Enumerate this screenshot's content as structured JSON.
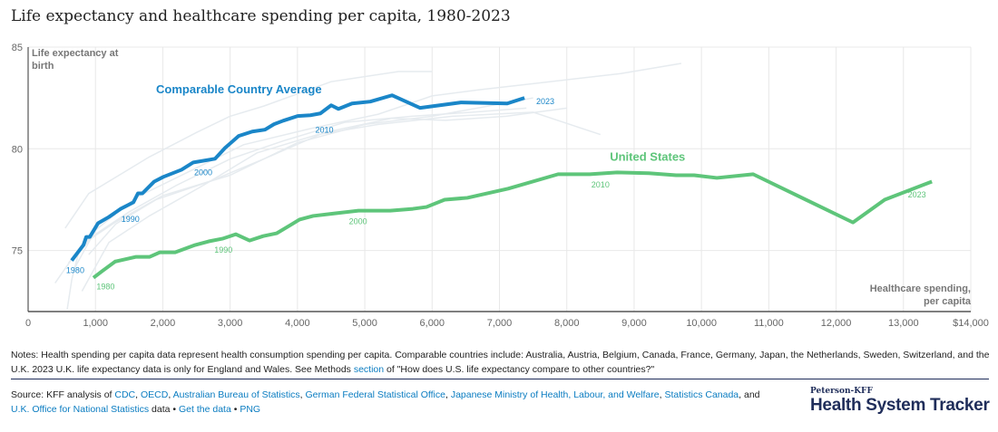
{
  "title": "Life expectancy and healthcare spending per capita, 1980-2023",
  "chart_data": {
    "type": "line",
    "title": "Life expectancy and healthcare spending per capita, 1980-2023",
    "xlabel": "Healthcare spending, per capita",
    "ylabel": "Life expectancy at birth",
    "xlabel_lines": [
      "Healthcare spending,",
      "per capita"
    ],
    "ylabel_lines": [
      "Life expectancy at",
      "birth"
    ],
    "xlim": [
      0,
      14000
    ],
    "ylim": [
      72,
      85
    ],
    "x_ticks": [
      0,
      1000,
      2000,
      3000,
      4000,
      5000,
      6000,
      7000,
      8000,
      9000,
      10000,
      11000,
      12000,
      13000,
      14000
    ],
    "x_tick_labels": [
      "0",
      "1,000",
      "2,000",
      "3,000",
      "4,000",
      "5,000",
      "6,000",
      "7,000",
      "8,000",
      "9,000",
      "10,000",
      "11,000",
      "12,000",
      "13,000",
      "$14,000"
    ],
    "y_ticks": [
      75,
      80,
      85
    ],
    "y_tick_labels": [
      "75",
      "80",
      "85"
    ],
    "grid": true,
    "series": [
      {
        "name": "Comparable Country Average",
        "color": "#1a86c8",
        "x": [
          647,
          822,
          863,
          916,
          1038,
          1200,
          1375,
          1564,
          1631,
          1698,
          1873,
          2008,
          2278,
          2453,
          2776,
          2924,
          3127,
          3329,
          3518,
          3652,
          3787,
          4003,
          4191,
          4340,
          4501,
          4609,
          4811,
          5081,
          5404,
          5822,
          6429,
          7116,
          7372
        ],
        "y": [
          74.51,
          75.27,
          75.67,
          75.67,
          76.34,
          76.65,
          77.05,
          77.37,
          77.81,
          77.81,
          78.39,
          78.62,
          78.97,
          79.33,
          79.51,
          80.04,
          80.63,
          80.85,
          80.94,
          81.21,
          81.38,
          81.61,
          81.65,
          81.74,
          82.14,
          81.96,
          82.23,
          82.32,
          82.63,
          82.01,
          82.28,
          82.23,
          82.5
        ],
        "year_labels": [
          {
            "text": "1980",
            "x": 700,
            "y": 73.9
          },
          {
            "text": "1990",
            "x": 1520,
            "y": 76.4
          },
          {
            "text": "2000",
            "x": 2600,
            "y": 78.7
          },
          {
            "text": "2010",
            "x": 4400,
            "y": 80.8
          },
          {
            "text": "2023",
            "x": 7680,
            "y": 82.2
          }
        ]
      },
      {
        "name": "United States",
        "color": "#5ec57a",
        "x": [
          970,
          1105,
          1294,
          1604,
          1806,
          1954,
          2183,
          2480,
          2682,
          2884,
          3086,
          3288,
          3491,
          3693,
          3895,
          4030,
          4232,
          4569,
          4906,
          5377,
          5714,
          5916,
          6186,
          6523,
          7129,
          7871,
          8342,
          8747,
          9218,
          9623,
          9892,
          10229,
          10768,
          12250,
          12722,
          13423
        ],
        "y": [
          73.66,
          74.0,
          74.46,
          74.69,
          74.69,
          74.91,
          74.91,
          75.27,
          75.45,
          75.58,
          75.8,
          75.49,
          75.71,
          75.85,
          76.25,
          76.52,
          76.7,
          76.83,
          76.96,
          76.96,
          77.05,
          77.14,
          77.5,
          77.59,
          78.04,
          78.75,
          78.75,
          78.84,
          78.8,
          78.7,
          78.7,
          78.57,
          78.75,
          76.38,
          77.5,
          78.39
        ],
        "year_labels": [
          {
            "text": "1980",
            "x": 1150,
            "y": 73.1
          },
          {
            "text": "1990",
            "x": 2900,
            "y": 74.9
          },
          {
            "text": "2000",
            "x": 4900,
            "y": 76.3
          },
          {
            "text": "2010",
            "x": 8500,
            "y": 78.1
          },
          {
            "text": "2023",
            "x": 13200,
            "y": 77.6
          }
        ]
      }
    ],
    "background_series_color": "#e6ebef",
    "background_series": [
      {
        "x": [
          550,
          900,
          1300,
          1800,
          2500,
          3000,
          3500,
          4500,
          5500,
          6000
        ],
        "y": [
          76.1,
          77.8,
          78.6,
          79.6,
          80.8,
          81.6,
          82.1,
          83.3,
          83.8,
          83.8
        ]
      },
      {
        "x": [
          700,
          1000,
          1600,
          2400,
          3200,
          4200,
          5200,
          6000,
          6700,
          7500,
          8800,
          9700
        ],
        "y": [
          74.2,
          76,
          77.6,
          78.9,
          80.2,
          81,
          81.7,
          82.6,
          82.9,
          83.2,
          83.7,
          84.2
        ]
      },
      {
        "x": [
          400,
          800,
          1300,
          2000,
          3000,
          4000,
          5000,
          6000,
          7000,
          7500
        ],
        "y": [
          73.4,
          75.3,
          76.4,
          77.7,
          78.7,
          80.3,
          81.2,
          81.6,
          82.2,
          82.5
        ]
      },
      {
        "x": [
          800,
          1200,
          1800,
          2600,
          3400,
          4300,
          5200,
          6300,
          7500,
          8500
        ],
        "y": [
          73,
          75.4,
          76.7,
          78.2,
          79.8,
          80.7,
          81.2,
          81.6,
          81.8,
          80.7
        ]
      },
      {
        "x": [
          600,
          1000,
          1500,
          2200,
          3000,
          3800,
          4700,
          5700,
          6600,
          7400
        ],
        "y": [
          74.4,
          75.8,
          76.9,
          78.2,
          79.5,
          80.4,
          81.3,
          81.6,
          81.8,
          82.0
        ]
      },
      {
        "x": [
          900,
          1300,
          1900,
          2700,
          3500,
          4400,
          5400,
          6200,
          7100,
          8000
        ],
        "y": [
          74.8,
          76.3,
          77.5,
          78.4,
          79.5,
          80.8,
          81.5,
          81.4,
          81.6,
          82.0
        ]
      },
      {
        "x": [
          580,
          650,
          750,
          900
        ],
        "y": [
          72.1,
          73.6,
          74.9,
          75.6
        ]
      }
    ]
  },
  "notes": {
    "text_before": "Notes: Health spending per capita data represent health consumption spending per capita. Comparable countries include: Australia, Austria, Belgium, Canada, France, Germany, Japan, the Netherlands, Sweden, Switzerland, and the U.K. 2023 U.K. life expectancy data is only for England and Wales. See Methods ",
    "link": "section",
    "text_after": " of \"How does U.S. life expectancy compare to other countries?\""
  },
  "source": {
    "prefix": "Source: KFF analysis of ",
    "links": [
      "CDC",
      "OECD",
      "Australian Bureau of Statistics",
      "German Federal Statistical Office",
      "Japanese Ministry of Health, Labour, and Welfare",
      "Statistics Canada",
      "U.K. Office for National Statistics"
    ],
    "sep": ", ",
    "and": ", and ",
    "data": " data • ",
    "get_data": "Get the data",
    "bullet": " • ",
    "png": "PNG"
  },
  "logo": {
    "small": "Peterson-KFF",
    "big": "Health System Tracker"
  }
}
